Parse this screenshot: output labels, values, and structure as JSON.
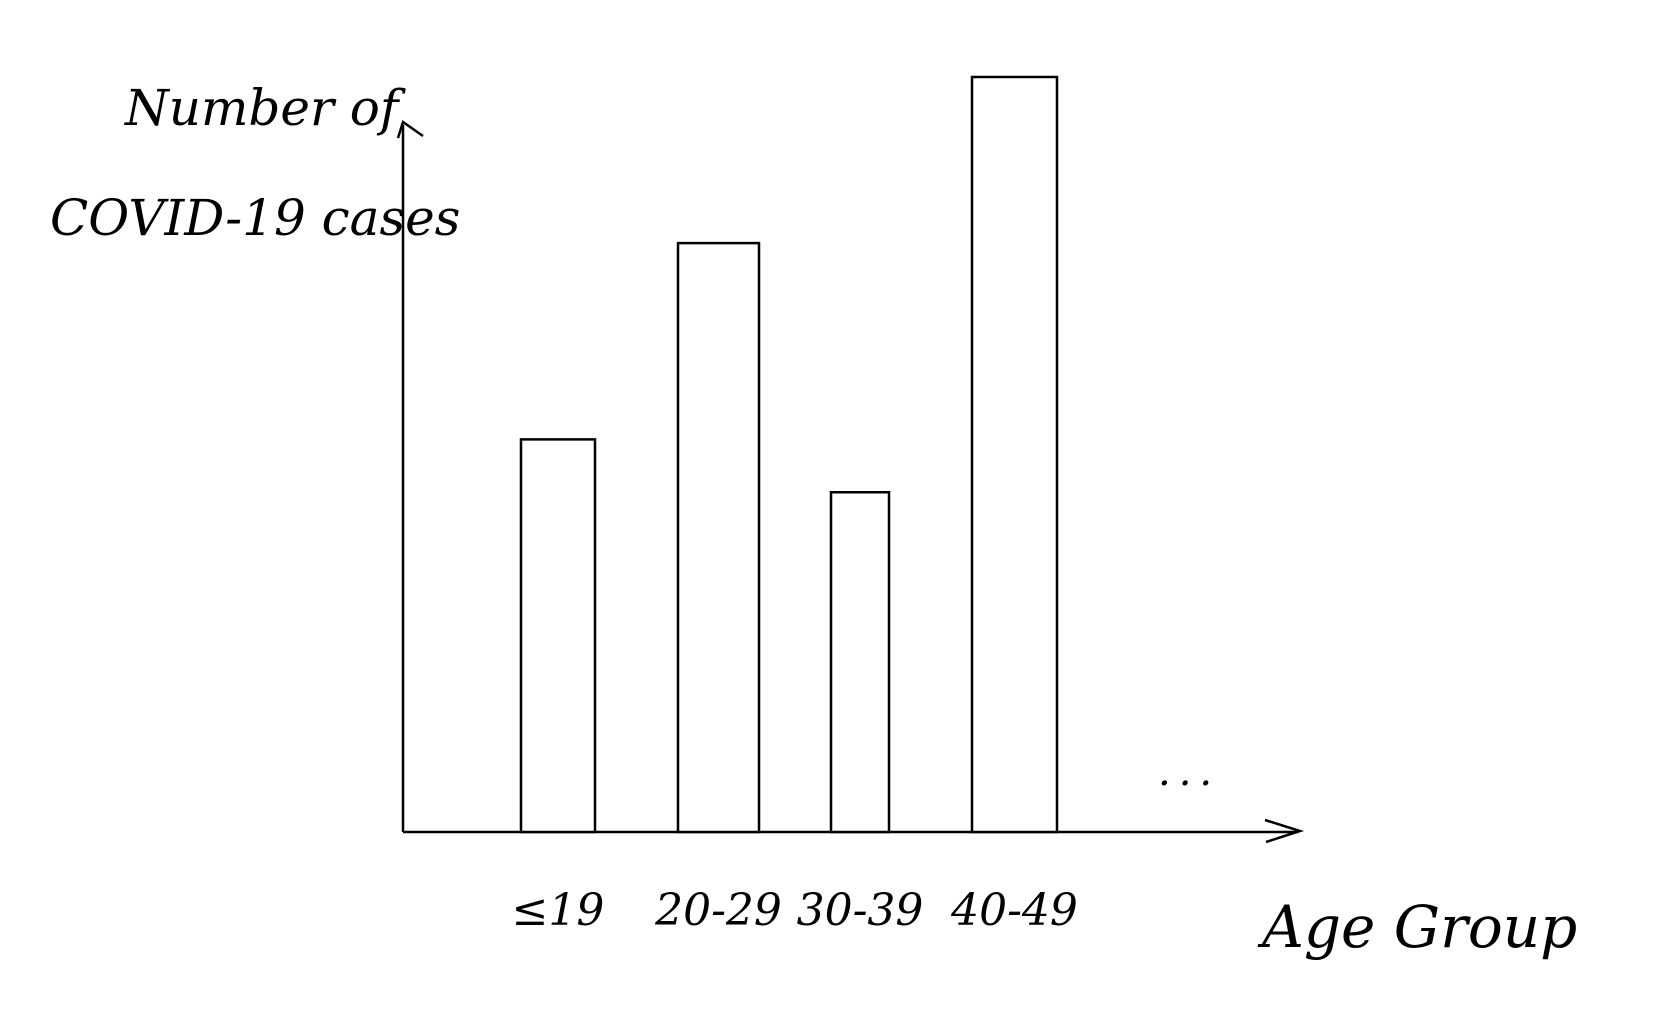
{
  "chart_data": {
    "type": "bar",
    "title": "",
    "ylabel_lines": [
      "Number of",
      "COVID-19 cases"
    ],
    "xlabel": "Age Group",
    "categories": [
      "≤19",
      "20-29",
      "30-39",
      "40-49"
    ],
    "values": [
      5.2,
      7.8,
      4.5,
      10.0
    ],
    "continuation": "...",
    "ylim": [
      0,
      10.0
    ],
    "grid": false,
    "legend": "none",
    "ticks_on_y": false,
    "bar_fill": "#ffffff",
    "bar_stroke": "#000000"
  }
}
